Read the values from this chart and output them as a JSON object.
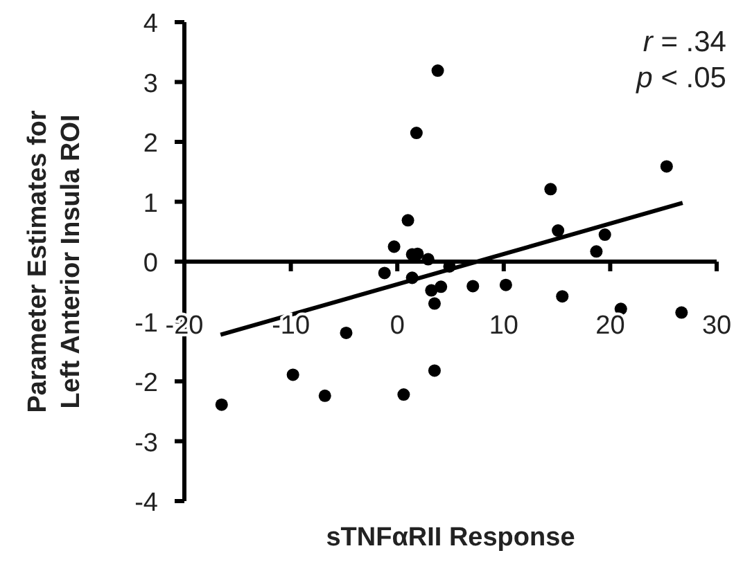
{
  "chart_data": {
    "type": "scatter",
    "xlabel": "sTNFαRII Response",
    "ylabel": "Parameter Estimates for\nLeft Anterior Insula ROI",
    "xlim": [
      -20,
      30
    ],
    "xticks": [
      -20,
      -10,
      0,
      10,
      20,
      30
    ],
    "ylim": [
      -4,
      4
    ],
    "yticks": [
      -4,
      -3,
      -2,
      -1,
      0,
      1,
      2,
      3,
      4
    ],
    "annotations": [
      "r = .34",
      "p < .05"
    ],
    "series": [
      {
        "color": "#000000",
        "marker": "circle",
        "x": [
          -16.5,
          -9.8,
          -6.8,
          -4.8,
          -1.2,
          -0.3,
          1.0,
          1.4,
          1.9,
          1.4,
          2.9,
          3.2,
          4.1,
          3.5,
          4.9,
          3.5,
          0.6,
          7.1,
          10.2,
          15.1,
          15.5,
          18.7,
          19.5,
          21.0,
          26.7,
          3.8,
          1.8,
          14.4,
          25.3
        ],
        "values": [
          -2.39,
          -1.89,
          -2.24,
          -1.19,
          -0.19,
          0.25,
          0.69,
          0.12,
          0.13,
          -0.27,
          0.04,
          -0.48,
          -0.42,
          -0.7,
          -0.08,
          -1.82,
          -2.22,
          -0.41,
          -0.39,
          0.52,
          -0.58,
          0.17,
          0.45,
          -0.79,
          -0.85,
          3.19,
          2.15,
          1.21,
          1.59
        ]
      },
      {
        "type": "line",
        "color": "#000000",
        "line_style": "solid",
        "x": [
          -16.6,
          26.8
        ],
        "values": [
          -1.22,
          0.98
        ]
      }
    ]
  }
}
